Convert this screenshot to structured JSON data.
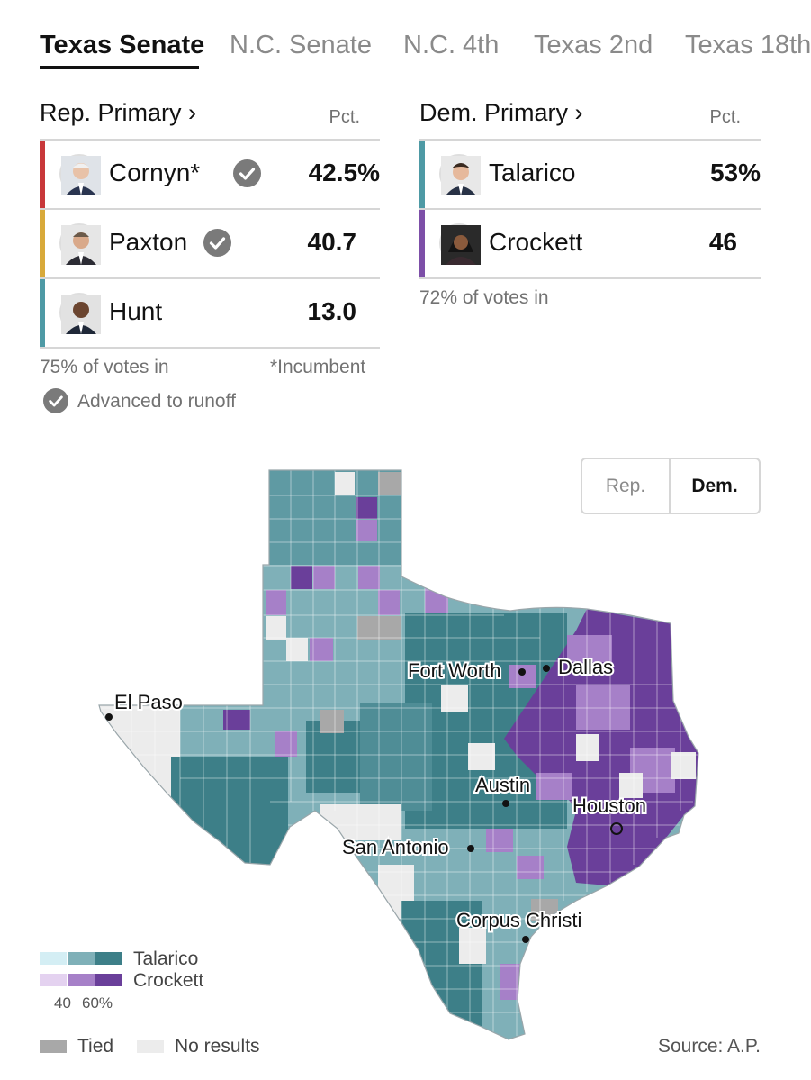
{
  "tabs": [
    {
      "label": "Texas Senate",
      "active": true
    },
    {
      "label": "N.C. Senate",
      "active": false
    },
    {
      "label": "N.C. 4th",
      "active": false
    },
    {
      "label": "Texas 2nd",
      "active": false
    },
    {
      "label": "Texas 18th",
      "active": false
    }
  ],
  "rep_race": {
    "title": "Rep. Primary ›",
    "pct_label": "Pct.",
    "candidates": [
      {
        "name": "Cornyn*",
        "pct": "42.5%",
        "advanced": true,
        "color": "#c8383a"
      },
      {
        "name": "Paxton",
        "pct": "40.7",
        "advanced": true,
        "color": "#d8a93a"
      },
      {
        "name": "Hunt",
        "pct": "13.0",
        "advanced": false,
        "color": "#4e9aa5"
      }
    ],
    "votes_in": "75% of votes in",
    "incumbent_note": "*Incumbent",
    "runoff_note": "Advanced to runoff"
  },
  "dem_race": {
    "title": "Dem. Primary ›",
    "pct_label": "Pct.",
    "candidates": [
      {
        "name": "Talarico",
        "pct": "53%",
        "color": "#4e9aa5"
      },
      {
        "name": "Crockett",
        "pct": "46",
        "color": "#7d4fa8"
      }
    ],
    "votes_in": "72% of votes in"
  },
  "toggle": {
    "rep_label": "Rep.",
    "dem_label": "Dem.",
    "selected": "Dem."
  },
  "map": {
    "cities": [
      "El Paso",
      "Fort Worth",
      "Dallas",
      "Austin",
      "Houston",
      "San Antonio",
      "Corpus Christi"
    ],
    "colors": {
      "talarico_light": "#d4eef4",
      "talarico_mid": "#7fb0b8",
      "talarico_dark": "#3d7f88",
      "crockett_light": "#e4d2f0",
      "crockett_mid": "#a680c8",
      "crockett_dark": "#6a3f9a",
      "tied": "#a8a8a8",
      "no_results": "#ececec"
    }
  },
  "legend": {
    "talarico_label": "Talarico",
    "crockett_label": "Crockett",
    "scale_low": "40",
    "scale_high": "60%",
    "tied_label": "Tied",
    "no_results_label": "No results"
  },
  "source": "Source: A.P."
}
